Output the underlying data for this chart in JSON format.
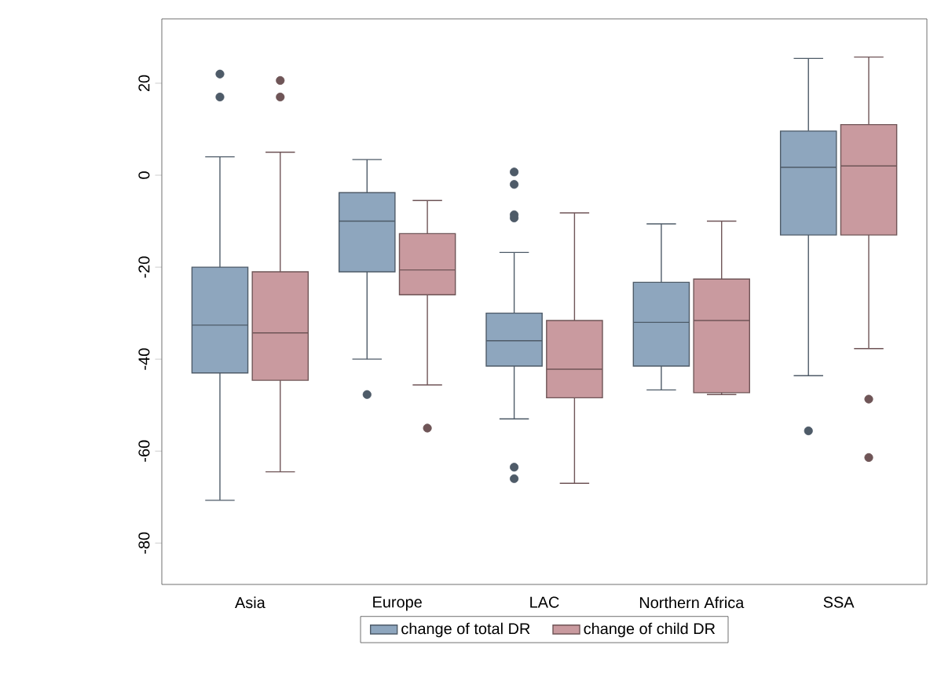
{
  "chart_data": {
    "type": "box",
    "categories": [
      "Asia",
      "Europe",
      "LAC",
      "Northern Africa",
      "SSA"
    ],
    "ylim": [
      -89,
      34
    ],
    "yticks": [
      -80,
      -60,
      -40,
      -20,
      0,
      20
    ],
    "legend": "bottom",
    "marker": "circle",
    "series": [
      {
        "name": "change of total DR",
        "color": "#8ea6be",
        "boxes": [
          {
            "low": -70.7,
            "q1": -43,
            "median": -32.6,
            "q3": -20,
            "high": 4,
            "outliers": [
              22,
              17
            ]
          },
          {
            "low": -40,
            "q1": -21,
            "median": -10,
            "q3": -3.8,
            "high": 3.4,
            "outliers": [
              -47.7
            ]
          },
          {
            "low": -53,
            "q1": -41.5,
            "median": -36,
            "q3": -30,
            "high": -16.8,
            "outliers": [
              0.7,
              -2,
              -8.6,
              -9.3,
              -63.5,
              -66
            ]
          },
          {
            "low": -46.7,
            "q1": -41.5,
            "median": -32,
            "q3": -23.3,
            "high": -10.6
          },
          {
            "low": -43.6,
            "q1": -13,
            "median": 1.7,
            "q3": 9.6,
            "high": 25.4,
            "outliers": [
              -55.6
            ]
          }
        ]
      },
      {
        "name": "change of child DR",
        "color": "#c99a9f",
        "boxes": [
          {
            "low": -64.5,
            "q1": -44.6,
            "median": -34.3,
            "q3": -21,
            "high": 5,
            "outliers": [
              20.6,
              17
            ]
          },
          {
            "low": -45.6,
            "q1": -26,
            "median": -20.6,
            "q3": -12.7,
            "high": -5.5,
            "outliers": [
              -55
            ]
          },
          {
            "low": -67,
            "q1": -48.4,
            "median": -42.2,
            "q3": -31.6,
            "high": -8.2
          },
          {
            "low": -47.7,
            "q1": -47.3,
            "median": -31.6,
            "q3": -22.6,
            "high": -10
          },
          {
            "low": -37.7,
            "q1": -13,
            "median": 2,
            "q3": 11,
            "high": 25.7,
            "outliers": [
              -48.7,
              -61.4
            ]
          }
        ]
      }
    ]
  }
}
